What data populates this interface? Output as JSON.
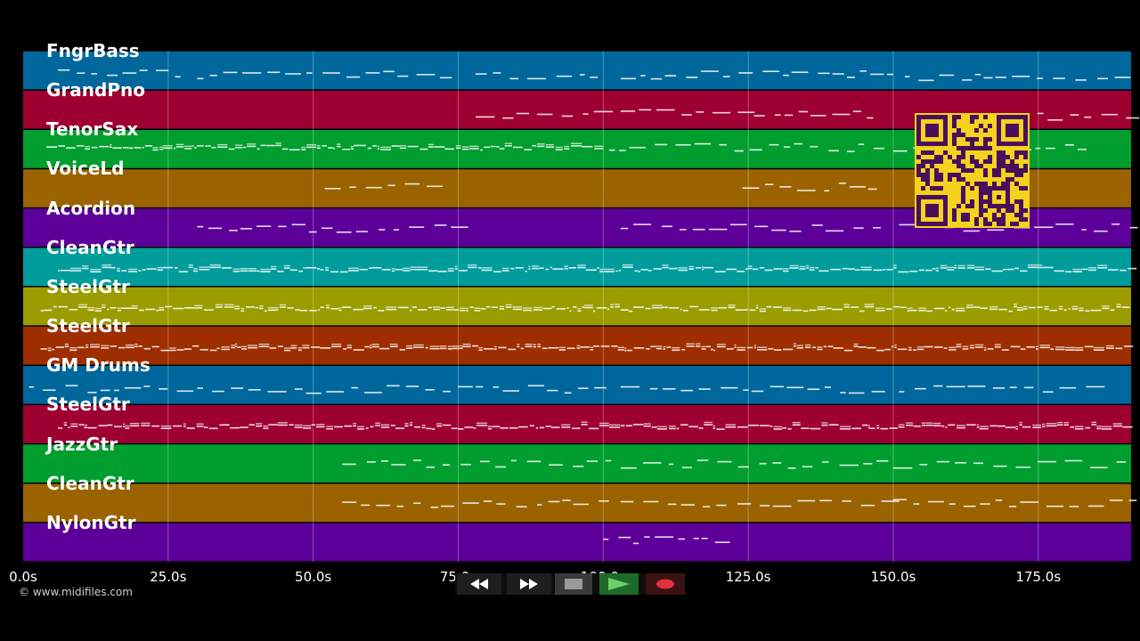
{
  "app": {
    "copyright": "© www.midifiles.com"
  },
  "timeline": {
    "ticks": [
      "0.0s",
      "25.0s",
      "50.0s",
      "75.0s",
      "100.0s",
      "125.0s",
      "150.0s",
      "175.0s"
    ],
    "tick_values": [
      0,
      25,
      50,
      75,
      100,
      125,
      150,
      175
    ],
    "end_seconds": 191
  },
  "tracks": [
    {
      "name": "FngrBass",
      "color": "#00679c",
      "notes": [
        [
          6,
          28,
          0.55
        ],
        [
          30,
          74,
          0.6
        ],
        [
          78,
          100,
          0.62
        ],
        [
          103,
          149,
          0.6
        ],
        [
          152,
          191,
          0.65
        ]
      ]
    },
    {
      "name": "GrandPno",
      "color": "#9e0031",
      "notes": [
        [
          78,
          100,
          0.6
        ],
        [
          103,
          125,
          0.58
        ],
        [
          126,
          148,
          0.62
        ],
        [
          158,
          191,
          0.65
        ]
      ]
    },
    {
      "name": "TenorSax",
      "color": "#009e2e",
      "notes": [
        [
          4,
          99,
          0.45
        ],
        [
          101,
          147,
          0.45
        ],
        [
          150,
          184,
          0.45
        ]
      ]
    },
    {
      "name": "VoiceLd",
      "color": "#9a6300",
      "notes": [
        [
          52,
          74,
          0.45
        ],
        [
          124,
          147,
          0.45
        ]
      ]
    },
    {
      "name": "Acordion",
      "color": "#5d009a",
      "notes": [
        [
          30,
          75,
          0.5
        ],
        [
          103,
          148,
          0.5
        ],
        [
          151,
          191,
          0.48
        ]
      ]
    },
    {
      "name": "CleanGtr",
      "color": "#009c9c",
      "notes": [
        [
          6,
          191,
          0.55
        ]
      ]
    },
    {
      "name": "SteelGtr",
      "color": "#9a9c00",
      "notes": [
        [
          3,
          191,
          0.55
        ]
      ]
    },
    {
      "name": "SteelGtr",
      "color": "#9e2e00",
      "notes": [
        [
          3,
          191,
          0.55
        ]
      ]
    },
    {
      "name": "GM Drums",
      "color": "#00679c",
      "notes": [
        [
          1,
          27,
          0.6
        ],
        [
          30,
          75,
          0.6
        ],
        [
          78,
          100,
          0.6
        ],
        [
          103,
          148,
          0.6
        ],
        [
          151,
          187,
          0.6
        ]
      ]
    },
    {
      "name": "SteelGtr",
      "color": "#9e0031",
      "notes": [
        [
          6,
          191,
          0.55
        ]
      ]
    },
    {
      "name": "JazzGtr",
      "color": "#009e2e",
      "notes": [
        [
          55,
          101,
          0.5
        ],
        [
          103,
          148,
          0.5
        ],
        [
          150,
          191,
          0.5
        ]
      ]
    },
    {
      "name": "CleanGtr",
      "color": "#9a6300",
      "notes": [
        [
          55,
          101,
          0.5
        ],
        [
          103,
          148,
          0.5
        ],
        [
          150,
          191,
          0.5
        ]
      ]
    },
    {
      "name": "NylonGtr",
      "color": "#5d009a",
      "notes": [
        [
          100,
          121,
          0.45
        ]
      ]
    }
  ],
  "transport": {
    "rewind_icon": "rewind-icon",
    "forward_icon": "fast-forward-icon",
    "stop_icon": "stop-icon",
    "play_icon": "play-icon",
    "record_icon": "record-icon",
    "colors": {
      "button_bg": "#1e1e1e",
      "stop_bg": "#3a3a3a",
      "stop_icon": "#9a9a9a",
      "play_bg": "#1f6a2a",
      "play_icon": "#6ad16a",
      "record_bg": "#3b1212",
      "record_icon": "#e0323c"
    }
  },
  "qr_code": {
    "fg": "#4a0f5c",
    "bg": "#f4d21e"
  }
}
